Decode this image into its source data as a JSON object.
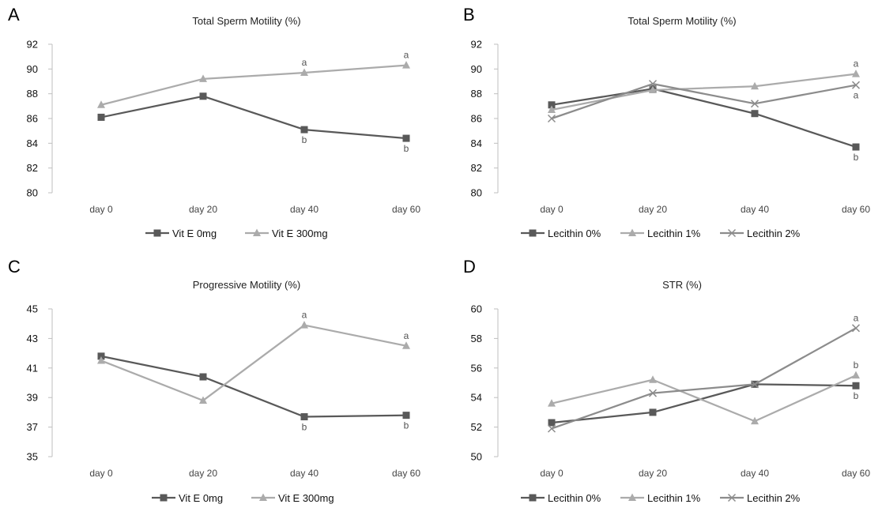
{
  "figure": {
    "colors": {
      "dark": "#595959",
      "light": "#ababab",
      "mid": "#8c8c8c",
      "axis": "#bfbfbf"
    }
  },
  "panels": [
    {
      "letter": "A",
      "chart_data": {
        "type": "line",
        "title": "Total Sperm Motility (%)",
        "categories": [
          "day 0",
          "day 20",
          "day 40",
          "day 60"
        ],
        "ylim": [
          80,
          92
        ],
        "yticks": [
          80,
          82,
          84,
          86,
          88,
          90,
          92
        ],
        "legend_position": "bottom",
        "grid": false,
        "series": [
          {
            "name": "Vit E 0mg",
            "marker": "square",
            "color": "#595959",
            "values": [
              86.1,
              87.8,
              85.1,
              84.4
            ],
            "labels": [
              "",
              "",
              "b",
              "b"
            ],
            "label_pos": "below"
          },
          {
            "name": "Vit E 300mg",
            "marker": "triangle",
            "color": "#ababab",
            "values": [
              87.1,
              89.2,
              89.7,
              90.3
            ],
            "labels": [
              "",
              "",
              "a",
              "a"
            ],
            "label_pos": "above"
          }
        ]
      }
    },
    {
      "letter": "B",
      "chart_data": {
        "type": "line",
        "title": "Total Sperm Motility (%)",
        "categories": [
          "day 0",
          "day 20",
          "day 40",
          "day 60"
        ],
        "ylim": [
          80,
          92
        ],
        "yticks": [
          80,
          82,
          84,
          86,
          88,
          90,
          92
        ],
        "legend_position": "bottom",
        "grid": false,
        "series": [
          {
            "name": "Lecithin 0%",
            "marker": "square",
            "color": "#595959",
            "values": [
              87.1,
              88.4,
              86.4,
              83.7
            ],
            "labels": [
              "",
              "",
              "",
              "b"
            ],
            "label_pos": "below"
          },
          {
            "name": "Lecithin 1%",
            "marker": "triangle",
            "color": "#ababab",
            "values": [
              86.7,
              88.3,
              88.6,
              89.6
            ],
            "labels": [
              "",
              "",
              "",
              "a"
            ],
            "label_pos": "above"
          },
          {
            "name": "Lecithin 2%",
            "marker": "x",
            "color": "#8c8c8c",
            "values": [
              86.0,
              88.8,
              87.2,
              88.7
            ],
            "labels": [
              "",
              "",
              "",
              "a"
            ],
            "label_pos": "below"
          }
        ]
      }
    },
    {
      "letter": "C",
      "chart_data": {
        "type": "line",
        "title": "Progressive Motility (%)",
        "categories": [
          "day 0",
          "day 20",
          "day 40",
          "day 60"
        ],
        "ylim": [
          35,
          45
        ],
        "yticks": [
          35,
          37,
          39,
          41,
          43,
          45
        ],
        "legend_position": "bottom",
        "grid": false,
        "series": [
          {
            "name": "Vit E 0mg",
            "marker": "square",
            "color": "#595959",
            "values": [
              41.8,
              40.4,
              37.7,
              37.8
            ],
            "labels": [
              "",
              "",
              "b",
              "b"
            ],
            "label_pos": "below"
          },
          {
            "name": "Vit E 300mg",
            "marker": "triangle",
            "color": "#ababab",
            "values": [
              41.5,
              38.8,
              43.9,
              42.5
            ],
            "labels": [
              "",
              "",
              "a",
              "a"
            ],
            "label_pos": "above"
          }
        ]
      }
    },
    {
      "letter": "D",
      "chart_data": {
        "type": "line",
        "title": "STR (%)",
        "categories": [
          "day 0",
          "day 20",
          "day 40",
          "day 60"
        ],
        "ylim": [
          50,
          60
        ],
        "yticks": [
          50,
          52,
          54,
          56,
          58,
          60
        ],
        "legend_position": "bottom",
        "grid": false,
        "series": [
          {
            "name": "Lecithin 0%",
            "marker": "square",
            "color": "#595959",
            "values": [
              52.3,
              53.0,
              54.9,
              54.8
            ],
            "labels": [
              "",
              "",
              "",
              "b"
            ],
            "label_pos": "below"
          },
          {
            "name": "Lecithin 1%",
            "marker": "triangle",
            "color": "#ababab",
            "values": [
              53.6,
              55.2,
              52.4,
              55.5
            ],
            "labels": [
              "",
              "",
              "",
              "b"
            ],
            "label_pos": "above"
          },
          {
            "name": "Lecithin 2%",
            "marker": "x",
            "color": "#8c8c8c",
            "values": [
              51.9,
              54.3,
              54.9,
              58.7
            ],
            "labels": [
              "",
              "",
              "",
              "a"
            ],
            "label_pos": "above"
          }
        ]
      }
    }
  ]
}
